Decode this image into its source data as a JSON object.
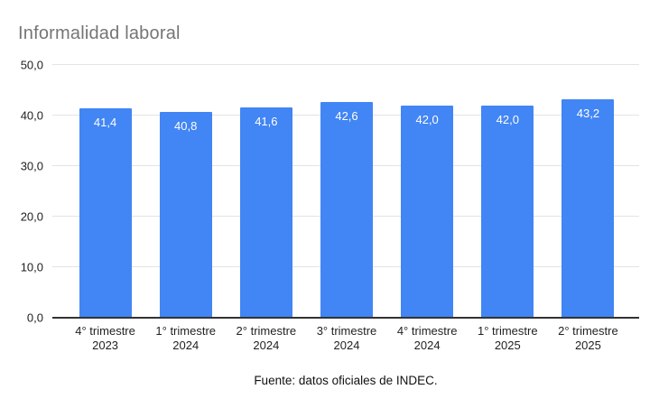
{
  "page": {
    "title": "Informalidad laboral",
    "source_note": "Fuente: datos oficiales de INDEC."
  },
  "chart_data": {
    "type": "bar",
    "title": "Informalidad laboral",
    "categories": [
      "4° trimestre\n2023",
      "1° trimestre\n2024",
      "2° trimestre\n2024",
      "3° trimestre\n2024",
      "4° trimestre\n2024",
      "1° trimestre\n2025",
      "2° trimestre\n2025"
    ],
    "values": [
      41.4,
      40.8,
      41.6,
      42.6,
      42.0,
      42.0,
      43.2
    ],
    "value_labels": [
      "41,4",
      "40,8",
      "41,6",
      "42,6",
      "42,0",
      "42,0",
      "43,2"
    ],
    "xlabel": "",
    "ylabel": "",
    "ylim": [
      0,
      50
    ],
    "yticks": [
      {
        "value": 0,
        "label": "0,0"
      },
      {
        "value": 10,
        "label": "10,0"
      },
      {
        "value": 20,
        "label": "20,0"
      },
      {
        "value": 30,
        "label": "30,0"
      },
      {
        "value": 40,
        "label": "40,0"
      },
      {
        "value": 50,
        "label": "50,0"
      }
    ],
    "grid": true,
    "legend": "none",
    "colors": {
      "bar": "#4285f4",
      "value_label": "#ffffff",
      "gridline": "#e3e3e3",
      "axis_line": "#333333",
      "title": "#757575",
      "tick_label": "#1f1f1f"
    },
    "source_note": "Fuente: datos oficiales de INDEC."
  }
}
